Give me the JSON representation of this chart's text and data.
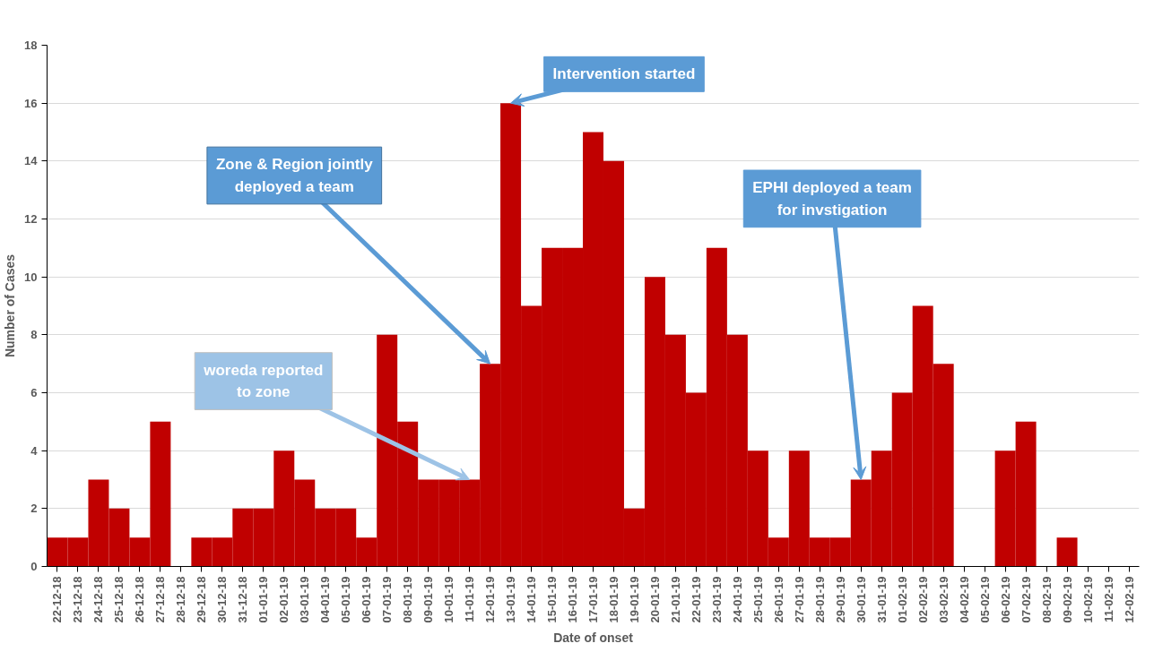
{
  "chart_data": {
    "type": "bar",
    "xlabel": "Date of onset",
    "ylabel": "Number of Cases",
    "categories": [
      "22-12-18",
      "23-12-18",
      "24-12-18",
      "25-12-18",
      "26-12-18",
      "27-12-18",
      "28-12-18",
      "29-12-18",
      "30-12-18",
      "31-12-18",
      "01-01-19",
      "02-01-19",
      "03-01-19",
      "04-01-19",
      "05-01-19",
      "06-01-19",
      "07-01-19",
      "08-01-19",
      "09-01-19",
      "10-01-19",
      "11-01-19",
      "12-01-19",
      "13-01-19",
      "14-01-19",
      "15-01-19",
      "16-01-19",
      "17-01-19",
      "18-01-19",
      "19-01-19",
      "20-01-19",
      "21-01-19",
      "22-01-19",
      "23-01-19",
      "24-01-19",
      "25-01-19",
      "26-01-19",
      "27-01-19",
      "28-01-19",
      "29-01-19",
      "30-01-19",
      "31-01-19",
      "01-02-19",
      "02-02-19",
      "03-02-19",
      "04-02-19",
      "05-02-19",
      "06-02-19",
      "07-02-19",
      "08-02-19",
      "09-02-19",
      "10-02-19",
      "11-02-19",
      "12-02-19"
    ],
    "values": [
      1,
      1,
      3,
      2,
      1,
      5,
      0,
      1,
      1,
      2,
      2,
      4,
      3,
      2,
      2,
      1,
      8,
      5,
      3,
      3,
      3,
      7,
      16,
      9,
      11,
      11,
      15,
      14,
      2,
      10,
      8,
      6,
      11,
      8,
      4,
      1,
      4,
      1,
      1,
      3,
      4,
      6,
      9,
      7,
      0,
      0,
      4,
      5,
      0,
      1,
      0,
      0,
      0
    ],
    "color": "#c00000",
    "ylim": [
      0,
      18
    ],
    "yticks": [
      0,
      2,
      4,
      6,
      8,
      10,
      12,
      14,
      16,
      18
    ],
    "grid": "y",
    "annotations": [
      {
        "text": "woreda reported\nto zone",
        "x": "11-01-19",
        "y": 3
      },
      {
        "text": "Zone & Region jointly\ndeployed a team",
        "x": "12-01-19",
        "y": 7
      },
      {
        "text": "Intervention started",
        "x": "13-01-19",
        "y": 16
      },
      {
        "text": "EPHI deployed a team\nfor invstigation",
        "x": "30-01-19",
        "y": 3
      }
    ]
  }
}
